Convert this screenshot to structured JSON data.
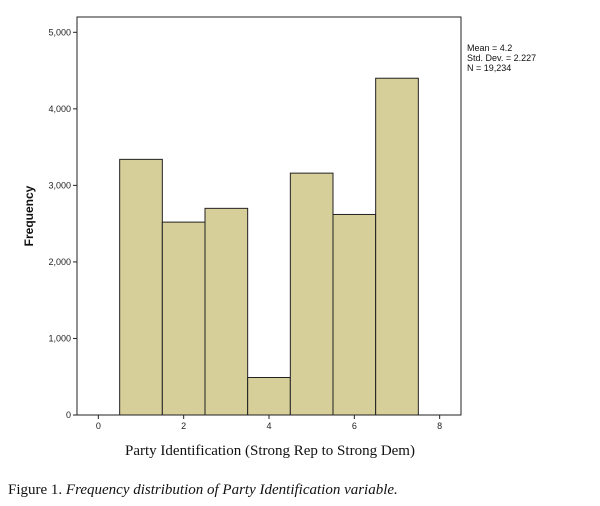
{
  "chart_data": {
    "type": "bar",
    "subtype": "histogram",
    "bins": [
      {
        "x0": 0.5,
        "x1": 1.5,
        "value": 3340
      },
      {
        "x0": 1.5,
        "x1": 2.5,
        "value": 2520
      },
      {
        "x0": 2.5,
        "x1": 3.5,
        "value": 2700
      },
      {
        "x0": 3.5,
        "x1": 4.5,
        "value": 490
      },
      {
        "x0": 4.5,
        "x1": 5.5,
        "value": 3160
      },
      {
        "x0": 5.5,
        "x1": 6.5,
        "value": 2620
      },
      {
        "x0": 6.5,
        "x1": 7.5,
        "value": 4400
      }
    ],
    "xlabel": "Party Identification (Strong Rep to Strong Dem)",
    "ylabel": "Frequency",
    "xlim": [
      -0.5,
      8.5
    ],
    "ylim": [
      0,
      5200
    ],
    "xticks": [
      0,
      2,
      4,
      6,
      8
    ],
    "yticks": [
      0,
      1000,
      2000,
      3000,
      4000,
      5000
    ],
    "ytick_labels": [
      "0",
      "1,000",
      "2,000",
      "3,000",
      "4,000",
      "5,000"
    ],
    "xtick_labels": [
      "0",
      "2",
      "4",
      "6",
      "8"
    ],
    "bar_color": "#d6cf9a",
    "stats": [
      "Mean = 4.2",
      "Std. Dev. = 2.227",
      "N = 19,234"
    ],
    "grid": false,
    "legend": "none"
  },
  "caption": {
    "prefix": "Figure 1. ",
    "italic": "Frequency distribution of Party Identification variable."
  }
}
